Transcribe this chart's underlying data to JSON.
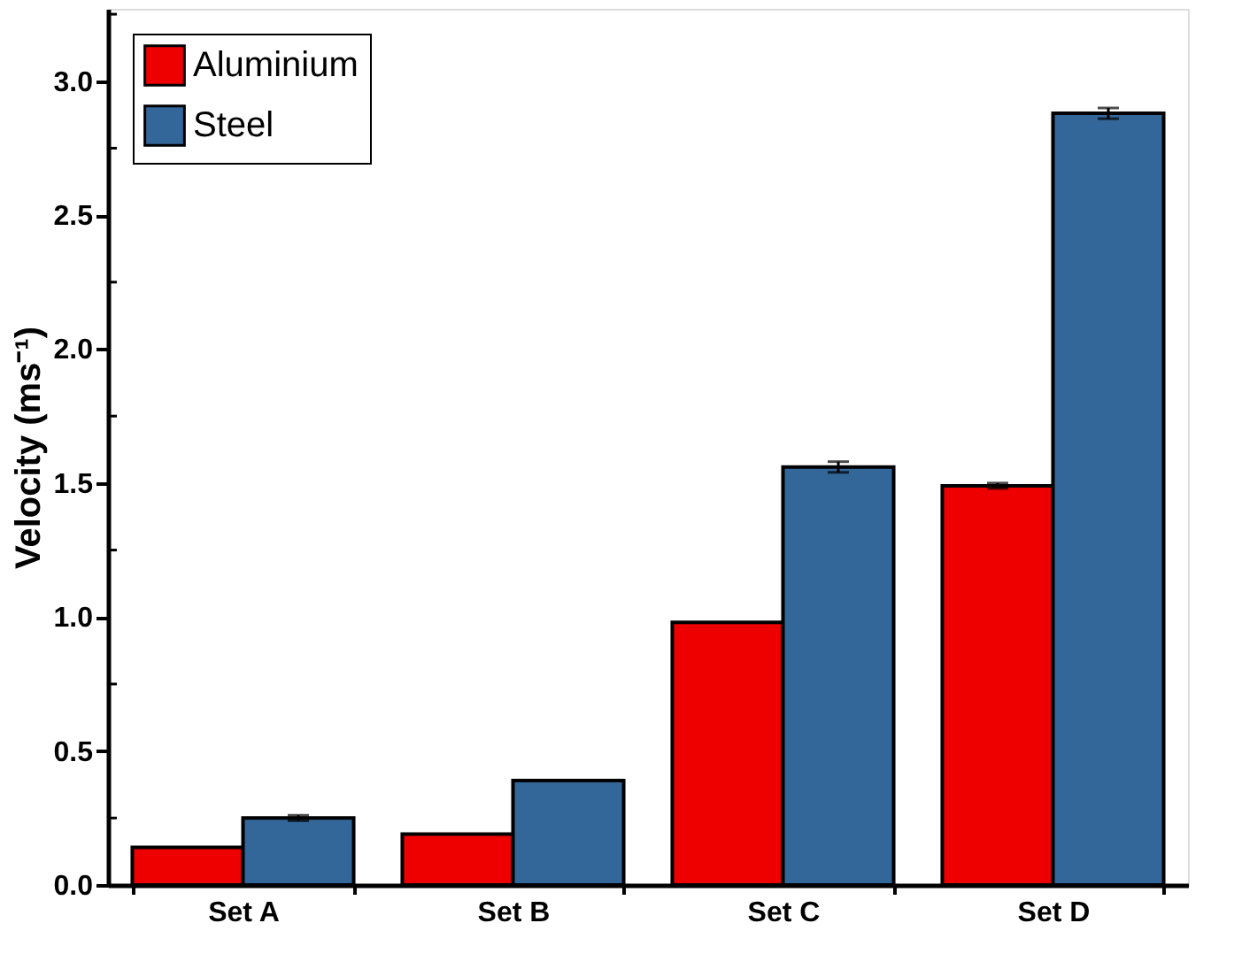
{
  "chart_data": {
    "type": "bar",
    "ylabel": "Velocity (ms⁻¹)",
    "categories": [
      "Set A",
      "Set B",
      "Set C",
      "Set D"
    ],
    "series": [
      {
        "name": "Aluminium",
        "color": "#ee0000",
        "values": [
          0.14,
          0.19,
          0.98,
          1.49
        ],
        "errors": [
          null,
          null,
          null,
          0.01
        ]
      },
      {
        "name": "Steel",
        "color": "#336699",
        "values": [
          0.25,
          0.39,
          1.56,
          2.88
        ],
        "errors": [
          0.01,
          null,
          0.02,
          0.02
        ]
      }
    ],
    "ylim": [
      0,
      3.27
    ],
    "yticks": [
      {
        "value": 0,
        "label": "0.0"
      },
      {
        "value": 0.25,
        "label": null
      },
      {
        "value": 0.5,
        "label": "0.5"
      },
      {
        "value": 0.75,
        "label": null
      },
      {
        "value": 1,
        "label": "1.0"
      },
      {
        "value": 1.25,
        "label": null
      },
      {
        "value": 1.5,
        "label": "1.5"
      },
      {
        "value": 1.75,
        "label": null
      },
      {
        "value": 2,
        "label": "2.0"
      },
      {
        "value": 2.25,
        "label": null
      },
      {
        "value": 2.5,
        "label": "2.5"
      },
      {
        "value": 2.75,
        "label": null
      },
      {
        "value": 3,
        "label": "3.0"
      },
      {
        "value": 3.25,
        "label": null
      }
    ],
    "legend": "top left",
    "grid": false
  }
}
